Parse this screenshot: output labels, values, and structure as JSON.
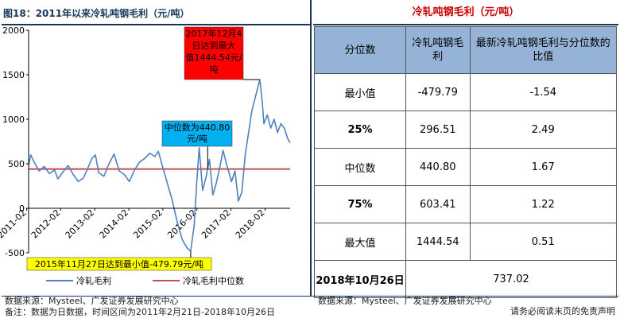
{
  "figure": {
    "title": "图18：2011年以来冷轧吨钢毛利（元/吨）",
    "source": "数据来源：Mysteel、广发证券发展研究中心",
    "note": "备注：数据为日数据，时间区间为2011年2月21日-2018年10月26日"
  },
  "table": {
    "title": "冷轧吨钢毛利（元/吨）",
    "headers": [
      "分位数",
      "冷轧吨钢毛利",
      "最新冷轧吨钢毛利与分位数的比值"
    ],
    "rows": [
      {
        "label": "最小值",
        "value": "-479.79",
        "ratio": "-1.54"
      },
      {
        "label": "25%",
        "value": "296.51",
        "ratio": "2.49"
      },
      {
        "label": "中位数",
        "value": "440.80",
        "ratio": "1.67"
      },
      {
        "label": "75%",
        "value": "603.41",
        "ratio": "1.22"
      },
      {
        "label": "最大值",
        "value": "1444.54",
        "ratio": "0.51"
      }
    ],
    "latest": {
      "label": "2018年10月26日",
      "value": "737.02"
    },
    "source": "数据来源：Mysteel、广发证券发展研究中心"
  },
  "disclaimer": "请务必阅读末页的免责声明",
  "chart_data": {
    "type": "line",
    "title": "",
    "xlabel": "",
    "ylabel": "",
    "ylim": [
      -500,
      2000
    ],
    "yticks": [
      "2000",
      "1500",
      "1000",
      "500",
      "0",
      "-500"
    ],
    "xticks": [
      "2011-02",
      "2012-02",
      "2013-02",
      "2014-02",
      "2015-02",
      "2016-02",
      "2017-02",
      "2018-02"
    ],
    "grid": false,
    "legend_position": "bottom",
    "series": [
      {
        "name": "冷轧毛利",
        "color": "#4f81bd",
        "points": [
          [
            2011.14,
            480
          ],
          [
            2011.2,
            600
          ],
          [
            2011.3,
            520
          ],
          [
            2011.45,
            420
          ],
          [
            2011.6,
            470
          ],
          [
            2011.75,
            390
          ],
          [
            2011.9,
            430
          ],
          [
            2012.0,
            330
          ],
          [
            2012.15,
            410
          ],
          [
            2012.3,
            480
          ],
          [
            2012.45,
            380
          ],
          [
            2012.6,
            300
          ],
          [
            2012.75,
            340
          ],
          [
            2012.9,
            470
          ],
          [
            2013.0,
            560
          ],
          [
            2013.1,
            600
          ],
          [
            2013.2,
            400
          ],
          [
            2013.35,
            360
          ],
          [
            2013.5,
            500
          ],
          [
            2013.65,
            610
          ],
          [
            2013.8,
            420
          ],
          [
            2013.95,
            380
          ],
          [
            2014.1,
            300
          ],
          [
            2014.25,
            430
          ],
          [
            2014.4,
            520
          ],
          [
            2014.55,
            560
          ],
          [
            2014.7,
            620
          ],
          [
            2014.85,
            580
          ],
          [
            2014.95,
            640
          ],
          [
            2015.05,
            500
          ],
          [
            2015.2,
            300
          ],
          [
            2015.35,
            100
          ],
          [
            2015.5,
            -150
          ],
          [
            2015.65,
            -350
          ],
          [
            2015.8,
            -450
          ],
          [
            2015.9,
            -479.79
          ],
          [
            2016.0,
            -200
          ],
          [
            2016.08,
            300
          ],
          [
            2016.15,
            680
          ],
          [
            2016.25,
            200
          ],
          [
            2016.35,
            350
          ],
          [
            2016.45,
            550
          ],
          [
            2016.55,
            150
          ],
          [
            2016.65,
            280
          ],
          [
            2016.75,
            450
          ],
          [
            2016.85,
            650
          ],
          [
            2016.95,
            500
          ],
          [
            2017.1,
            300
          ],
          [
            2017.2,
            420
          ],
          [
            2017.3,
            80
          ],
          [
            2017.4,
            180
          ],
          [
            2017.5,
            600
          ],
          [
            2017.6,
            850
          ],
          [
            2017.7,
            1100
          ],
          [
            2017.8,
            1250
          ],
          [
            2017.93,
            1444.54
          ],
          [
            2018.0,
            1200
          ],
          [
            2018.05,
            950
          ],
          [
            2018.15,
            1050
          ],
          [
            2018.25,
            900
          ],
          [
            2018.35,
            1000
          ],
          [
            2018.45,
            850
          ],
          [
            2018.55,
            950
          ],
          [
            2018.65,
            900
          ],
          [
            2018.75,
            780
          ],
          [
            2018.82,
            737.02
          ]
        ]
      },
      {
        "name": "冷轧毛利中位数",
        "color": "#c0504d",
        "constant": 440.8
      }
    ],
    "annotations": [
      {
        "text": "2017年12月4日达到最大值1444.54元/吨",
        "lines": [
          "2017年12月4",
          "日达到最大",
          "值1444.54元/",
          "吨"
        ],
        "bg": "#ff0000",
        "target": [
          2017.93,
          1444.54
        ]
      },
      {
        "text": "中位数为440.80元/吨",
        "lines": [
          "中位数为440.80",
          "元/吨"
        ],
        "bg": "#00b0f0",
        "target": [
          2016.4,
          440.8
        ]
      },
      {
        "text": "2015年11月27日达到最小值-479.79元/吨",
        "lines": [
          "2015年11月27日达到最小值-479.79元/吨"
        ],
        "bg": "#ffff00",
        "target": [
          2015.9,
          -479.79
        ]
      }
    ]
  }
}
